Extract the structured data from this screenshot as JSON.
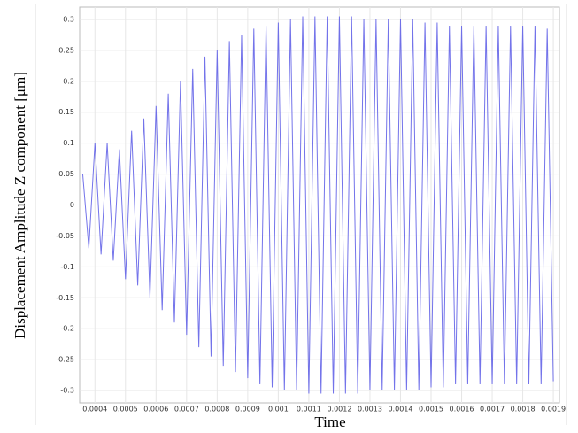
{
  "chart_data": {
    "type": "line",
    "x_label": "Time",
    "y_label": "Displacement Amplitude Z component [μm]",
    "xlim": [
      0.00035,
      0.00192
    ],
    "ylim": [
      -0.32,
      0.32
    ],
    "xticks": [
      0.0004,
      0.0005,
      0.0006,
      0.0007,
      0.0008,
      0.0009,
      0.001,
      0.0011,
      0.0012,
      0.0013,
      0.0014,
      0.0015,
      0.0016,
      0.0017,
      0.0018,
      0.0019
    ],
    "yticks": [
      -0.3,
      -0.25,
      -0.2,
      -0.15,
      -0.1,
      -0.05,
      0,
      0.05,
      0.1,
      0.15,
      0.2,
      0.25,
      0.3
    ],
    "grid": true,
    "series": [
      {
        "color": "#5a5ae6",
        "x": [
          0.00036,
          0.00038,
          0.0004,
          0.00042,
          0.00044,
          0.00046,
          0.00048,
          0.0005,
          0.00052,
          0.00054,
          0.00056,
          0.00058,
          0.0006,
          0.00062,
          0.00064,
          0.00066,
          0.00068,
          0.0007,
          0.00072,
          0.00074,
          0.00076,
          0.00078,
          0.0008,
          0.00082,
          0.00084,
          0.00086,
          0.00088,
          0.0009,
          0.00092,
          0.00094,
          0.00096,
          0.00098,
          0.001,
          0.00102,
          0.00104,
          0.00106,
          0.00108,
          0.0011,
          0.00112,
          0.00114,
          0.00116,
          0.00118,
          0.0012,
          0.00122,
          0.00124,
          0.00126,
          0.00128,
          0.0013,
          0.00132,
          0.00134,
          0.00136,
          0.00138,
          0.0014,
          0.00142,
          0.00144,
          0.00146,
          0.00148,
          0.0015,
          0.00152,
          0.00154,
          0.00156,
          0.00158,
          0.0016,
          0.00162,
          0.00164,
          0.00166,
          0.00168,
          0.0017,
          0.00172,
          0.00174,
          0.00176,
          0.00178,
          0.0018,
          0.00182,
          0.00184,
          0.00186,
          0.00188,
          0.0019
        ],
        "values": [
          0.05,
          -0.07,
          0.1,
          -0.08,
          0.1,
          -0.09,
          0.09,
          -0.12,
          0.12,
          -0.13,
          0.14,
          -0.15,
          0.16,
          -0.17,
          0.18,
          -0.19,
          0.2,
          -0.21,
          0.22,
          -0.23,
          0.24,
          -0.245,
          0.25,
          -0.26,
          0.265,
          -0.27,
          0.275,
          -0.28,
          0.285,
          -0.29,
          0.29,
          -0.295,
          0.295,
          -0.3,
          0.3,
          -0.3,
          0.305,
          -0.305,
          0.305,
          -0.305,
          0.305,
          -0.305,
          0.305,
          -0.305,
          0.305,
          -0.305,
          0.3,
          -0.3,
          0.3,
          -0.3,
          0.3,
          -0.3,
          0.3,
          -0.3,
          0.3,
          -0.3,
          0.295,
          -0.295,
          0.295,
          -0.295,
          0.29,
          -0.29,
          0.29,
          -0.29,
          0.29,
          -0.29,
          0.29,
          -0.29,
          0.29,
          -0.29,
          0.29,
          -0.29,
          0.29,
          -0.29,
          0.29,
          -0.29,
          0.285,
          -0.285
        ]
      }
    ]
  }
}
